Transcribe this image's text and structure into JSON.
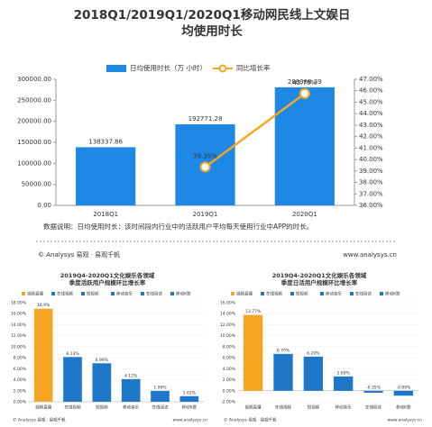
{
  "chart_data": [
    {
      "type": "bar",
      "title": "2018Q1/2019Q1/2020Q1移动网民线上文娱日均使用时长",
      "categories": [
        "2018Q1",
        "2019Q1",
        "2020Q1"
      ],
      "series": [
        {
          "name": "日均使用时长（万 小时）",
          "color": "#1e88e5",
          "values": [
            138337.86,
            192771.28,
            280968.39
          ]
        },
        {
          "name": "同比增长率",
          "color": "#f5a623",
          "axis": "y2",
          "values": [
            null,
            39.35,
            45.75
          ],
          "value_labels": [
            null,
            "39.35%",
            "45.75%"
          ]
        }
      ],
      "ylim": [
        0,
        300000
      ],
      "yticks": [
        {
          "value": 0,
          "label": "0.00"
        },
        {
          "value": 50000,
          "label": "50000.00"
        },
        {
          "value": 100000,
          "label": "100000.00"
        },
        {
          "value": 150000,
          "label": "150000.00"
        },
        {
          "value": 200000,
          "label": "200000.00"
        },
        {
          "value": 250000,
          "label": "250000.00"
        },
        {
          "value": 300000,
          "label": "300000.00"
        }
      ],
      "y2lim": [
        36,
        47
      ],
      "y2ticks": [
        {
          "value": 36,
          "label": "36.00%"
        },
        {
          "value": 37,
          "label": "37.00%"
        },
        {
          "value": 38,
          "label": "38.00%"
        },
        {
          "value": 39,
          "label": "39.00%"
        },
        {
          "value": 40,
          "label": "40.00%"
        },
        {
          "value": 41,
          "label": "41.00%"
        },
        {
          "value": 42,
          "label": "42.00%"
        },
        {
          "value": 43,
          "label": "43.00%"
        },
        {
          "value": 44,
          "label": "44.00%"
        },
        {
          "value": 45,
          "label": "45.00%"
        },
        {
          "value": 46,
          "label": "46.00%"
        },
        {
          "value": 47,
          "label": "47.00%"
        }
      ],
      "legend": "top"
    },
    {
      "type": "bar",
      "title": "2019Q4-2020Q1文化娱乐各领域",
      "subtitle": "季度活跃用户规模环比增长率",
      "categories": [
        "视频直播",
        "在线视频",
        "短视频",
        "移动音乐",
        "在线阅读",
        "移动K歌"
      ],
      "values": [
        16.9,
        8.13,
        6.99,
        4.12,
        1.99,
        1.02
      ],
      "value_labels": [
        "16.9%",
        "8.13%",
        "6.99%",
        "4.12%",
        "1.99%",
        "1.02%"
      ],
      "colors": [
        "#f5a623",
        "#1f77c9",
        "#1f77c9",
        "#1f77c9",
        "#1f77c9",
        "#1f77c9"
      ],
      "ylim": [
        0,
        18
      ],
      "yticks": [
        {
          "value": 0,
          "label": "0.00%"
        },
        {
          "value": 2,
          "label": "2.00%"
        },
        {
          "value": 4,
          "label": "4.00%"
        },
        {
          "value": 6,
          "label": "6.00%"
        },
        {
          "value": 8,
          "label": "8.00%"
        },
        {
          "value": 10,
          "label": "10.00%"
        },
        {
          "value": 12,
          "label": "12.00%"
        },
        {
          "value": 14,
          "label": "14.00%"
        },
        {
          "value": 16,
          "label": "16.00%"
        },
        {
          "value": 18,
          "label": "18.00%"
        }
      ]
    },
    {
      "type": "bar",
      "title": "2019Q4-2020Q1文化娱乐各领域",
      "subtitle": "季度日活用户规模环比增长率",
      "categories": [
        "视频直播",
        "在线视频",
        "短视频",
        "移动音乐",
        "在线阅读",
        "移动K歌"
      ],
      "values": [
        13.77,
        6.7,
        6.2,
        2.6,
        -0.35,
        -0.89
      ],
      "value_labels": [
        "13.77%",
        "6.70%",
        "6.20%",
        "2.60%",
        "-0.35%",
        "-0.89%"
      ],
      "colors": [
        "#f5a623",
        "#1f77c9",
        "#1f77c9",
        "#1f77c9",
        "#1f77c9",
        "#1f77c9"
      ],
      "ylim": [
        -2,
        16
      ],
      "yticks": [
        {
          "value": -2,
          "label": "-2.00%"
        },
        {
          "value": 0,
          "label": "0.00%"
        },
        {
          "value": 2,
          "label": "2.00%"
        },
        {
          "value": 4,
          "label": "4.00%"
        },
        {
          "value": 6,
          "label": "6.00%"
        },
        {
          "value": 8,
          "label": "8.00%"
        },
        {
          "value": 10,
          "label": "10.00%"
        },
        {
          "value": 12,
          "label": "12.00%"
        },
        {
          "value": 14,
          "label": "14.00%"
        },
        {
          "value": 16,
          "label": "16.00%"
        }
      ]
    }
  ],
  "note": "数据说明：日均使用时长：该时间段内行业中的活跃用户平均每天使用行业中APP的时长。",
  "footer": {
    "brand": "© Analysys 易观 · 易观千帆",
    "site": "www.analysys.cn"
  }
}
